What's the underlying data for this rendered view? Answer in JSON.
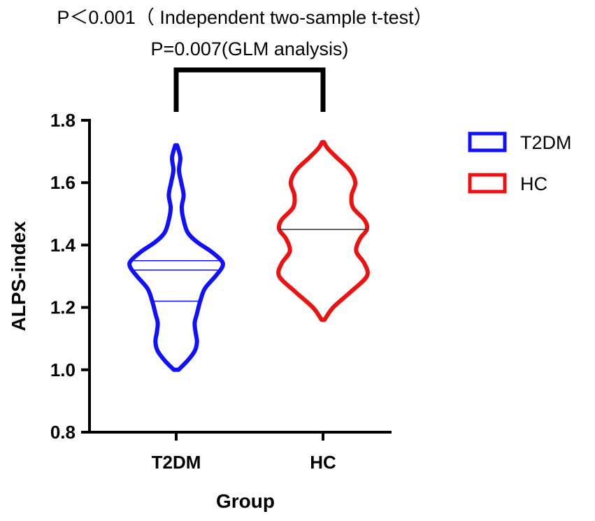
{
  "chart_data": {
    "type": "violin",
    "annotations": [
      "P＜0.001（ Independent two-sample t-test）",
      "P=0.007(GLM analysis)"
    ],
    "xlabel": "Group",
    "ylabel": "ALPS-index",
    "ylim": [
      0.8,
      1.8
    ],
    "yticks": [
      "0.8",
      "1.0",
      "1.2",
      "1.4",
      "1.6",
      "1.8"
    ],
    "categories": [
      "T2DM",
      "HC"
    ],
    "series": [
      {
        "name": "T2DM",
        "color": "#1010ff",
        "min": 1.0,
        "max": 1.72,
        "quartile_lines": [
          1.22,
          1.32,
          1.35
        ],
        "density": [
          [
            1.0,
            0.05
          ],
          [
            1.03,
            0.25
          ],
          [
            1.06,
            0.4
          ],
          [
            1.09,
            0.45
          ],
          [
            1.12,
            0.42
          ],
          [
            1.15,
            0.4
          ],
          [
            1.18,
            0.45
          ],
          [
            1.22,
            0.52
          ],
          [
            1.26,
            0.62
          ],
          [
            1.3,
            0.85
          ],
          [
            1.33,
            1.0
          ],
          [
            1.35,
            0.98
          ],
          [
            1.38,
            0.75
          ],
          [
            1.41,
            0.45
          ],
          [
            1.44,
            0.25
          ],
          [
            1.48,
            0.16
          ],
          [
            1.52,
            0.12
          ],
          [
            1.56,
            0.16
          ],
          [
            1.6,
            0.11
          ],
          [
            1.64,
            0.06
          ],
          [
            1.68,
            0.09
          ],
          [
            1.72,
            0.02
          ]
        ]
      },
      {
        "name": "HC",
        "color": "#ee1111",
        "min": 1.16,
        "max": 1.73,
        "quartile_lines": [
          1.45
        ],
        "density": [
          [
            1.16,
            0.03
          ],
          [
            1.2,
            0.22
          ],
          [
            1.25,
            0.6
          ],
          [
            1.3,
            0.95
          ],
          [
            1.34,
            0.9
          ],
          [
            1.38,
            0.72
          ],
          [
            1.42,
            0.8
          ],
          [
            1.45,
            0.95
          ],
          [
            1.48,
            0.9
          ],
          [
            1.52,
            0.65
          ],
          [
            1.56,
            0.62
          ],
          [
            1.6,
            0.7
          ],
          [
            1.64,
            0.58
          ],
          [
            1.68,
            0.3
          ],
          [
            1.71,
            0.1
          ],
          [
            1.73,
            0.02
          ]
        ]
      }
    ],
    "legend": [
      "T2DM",
      "HC"
    ],
    "legend_position": "right"
  }
}
